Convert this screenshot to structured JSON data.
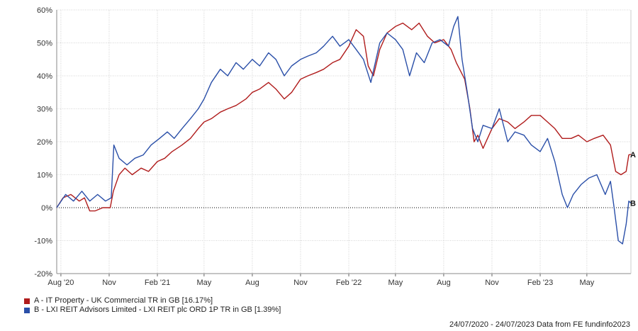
{
  "chart_data": {
    "type": "line",
    "y_unit": "%",
    "ylim": [
      -20,
      60
    ],
    "y_ticks": [
      "60%",
      "50%",
      "40%",
      "30%",
      "20%",
      "10%",
      "0%",
      "-10%",
      "-20%"
    ],
    "x_tick_labels": [
      "Aug '20",
      "Nov",
      "Feb '21",
      "May",
      "Aug",
      "Nov",
      "Feb '22",
      "May",
      "Aug",
      "Nov",
      "Feb '23",
      "May"
    ],
    "x_range": [
      "2020-07-24",
      "2023-07-24"
    ],
    "grid": true,
    "zero_line": "dotted",
    "series": [
      {
        "name": "A - IT Property - UK Commercial TR in GB [16.17%]",
        "end_label": "A",
        "color": "#b01c1c",
        "points": [
          [
            "2020-07-24",
            0
          ],
          [
            "2020-08-05",
            3
          ],
          [
            "2020-08-20",
            4
          ],
          [
            "2020-09-05",
            2
          ],
          [
            "2020-09-15",
            3
          ],
          [
            "2020-09-25",
            -1
          ],
          [
            "2020-10-05",
            -1
          ],
          [
            "2020-10-20",
            0
          ],
          [
            "2020-11-03",
            0
          ],
          [
            "2020-11-09",
            5
          ],
          [
            "2020-11-20",
            10
          ],
          [
            "2020-12-01",
            12
          ],
          [
            "2020-12-15",
            10
          ],
          [
            "2021-01-01",
            12
          ],
          [
            "2021-01-15",
            11
          ],
          [
            "2021-02-01",
            14
          ],
          [
            "2021-02-15",
            15
          ],
          [
            "2021-03-01",
            17
          ],
          [
            "2021-03-20",
            19
          ],
          [
            "2021-04-05",
            21
          ],
          [
            "2021-04-20",
            24
          ],
          [
            "2021-05-01",
            26
          ],
          [
            "2021-05-15",
            27
          ],
          [
            "2021-06-01",
            29
          ],
          [
            "2021-06-15",
            30
          ],
          [
            "2021-07-01",
            31
          ],
          [
            "2021-07-20",
            33
          ],
          [
            "2021-08-01",
            35
          ],
          [
            "2021-08-15",
            36
          ],
          [
            "2021-09-01",
            38
          ],
          [
            "2021-09-15",
            36
          ],
          [
            "2021-10-01",
            33
          ],
          [
            "2021-10-15",
            35
          ],
          [
            "2021-11-01",
            39
          ],
          [
            "2021-11-15",
            40
          ],
          [
            "2021-12-01",
            41
          ],
          [
            "2021-12-15",
            42
          ],
          [
            "2022-01-01",
            44
          ],
          [
            "2022-01-15",
            45
          ],
          [
            "2022-02-01",
            49
          ],
          [
            "2022-02-15",
            54
          ],
          [
            "2022-03-01",
            52
          ],
          [
            "2022-03-10",
            43
          ],
          [
            "2022-03-20",
            40
          ],
          [
            "2022-04-01",
            48
          ],
          [
            "2022-04-15",
            53
          ],
          [
            "2022-05-01",
            55
          ],
          [
            "2022-05-15",
            56
          ],
          [
            "2022-06-01",
            54
          ],
          [
            "2022-06-15",
            56
          ],
          [
            "2022-07-01",
            52
          ],
          [
            "2022-07-15",
            50
          ],
          [
            "2022-08-01",
            51
          ],
          [
            "2022-08-15",
            48
          ],
          [
            "2022-08-25",
            44
          ],
          [
            "2022-09-10",
            39
          ],
          [
            "2022-09-20",
            30
          ],
          [
            "2022-09-28",
            20
          ],
          [
            "2022-10-05",
            22
          ],
          [
            "2022-10-15",
            18
          ],
          [
            "2022-11-01",
            24
          ],
          [
            "2022-11-15",
            27
          ],
          [
            "2022-12-01",
            26
          ],
          [
            "2022-12-15",
            24
          ],
          [
            "2023-01-01",
            26
          ],
          [
            "2023-01-15",
            28
          ],
          [
            "2023-02-01",
            28
          ],
          [
            "2023-02-15",
            26
          ],
          [
            "2023-03-01",
            24
          ],
          [
            "2023-03-15",
            21
          ],
          [
            "2023-04-01",
            21
          ],
          [
            "2023-04-15",
            22
          ],
          [
            "2023-05-01",
            20
          ],
          [
            "2023-05-15",
            21
          ],
          [
            "2023-06-01",
            22
          ],
          [
            "2023-06-15",
            19
          ],
          [
            "2023-06-25",
            11
          ],
          [
            "2023-07-05",
            10
          ],
          [
            "2023-07-15",
            11
          ],
          [
            "2023-07-20",
            16
          ],
          [
            "2023-07-24",
            16.17
          ]
        ]
      },
      {
        "name": "B - LXI REIT Advisors Limited - LXI REIT plc ORD 1P TR in GB [1.39%]",
        "end_label": "B",
        "color": "#2a4fa8",
        "points": [
          [
            "2020-07-24",
            0
          ],
          [
            "2020-08-10",
            4
          ],
          [
            "2020-08-25",
            2
          ],
          [
            "2020-09-10",
            5
          ],
          [
            "2020-09-25",
            2
          ],
          [
            "2020-10-10",
            4
          ],
          [
            "2020-10-25",
            2
          ],
          [
            "2020-11-05",
            3
          ],
          [
            "2020-11-10",
            19
          ],
          [
            "2020-11-20",
            15
          ],
          [
            "2020-12-05",
            13
          ],
          [
            "2020-12-20",
            15
          ],
          [
            "2021-01-05",
            16
          ],
          [
            "2021-01-20",
            19
          ],
          [
            "2021-02-05",
            21
          ],
          [
            "2021-02-20",
            23
          ],
          [
            "2021-03-05",
            21
          ],
          [
            "2021-03-20",
            24
          ],
          [
            "2021-04-05",
            27
          ],
          [
            "2021-04-20",
            30
          ],
          [
            "2021-05-01",
            33
          ],
          [
            "2021-05-15",
            38
          ],
          [
            "2021-06-01",
            42
          ],
          [
            "2021-06-15",
            40
          ],
          [
            "2021-07-01",
            44
          ],
          [
            "2021-07-15",
            42
          ],
          [
            "2021-08-01",
            45
          ],
          [
            "2021-08-15",
            43
          ],
          [
            "2021-09-01",
            47
          ],
          [
            "2021-09-15",
            45
          ],
          [
            "2021-10-01",
            40
          ],
          [
            "2021-10-15",
            43
          ],
          [
            "2021-11-01",
            45
          ],
          [
            "2021-11-15",
            46
          ],
          [
            "2021-12-01",
            47
          ],
          [
            "2021-12-15",
            49
          ],
          [
            "2022-01-01",
            52
          ],
          [
            "2022-01-15",
            49
          ],
          [
            "2022-02-01",
            51
          ],
          [
            "2022-02-15",
            48
          ],
          [
            "2022-03-01",
            45
          ],
          [
            "2022-03-15",
            38
          ],
          [
            "2022-04-01",
            50
          ],
          [
            "2022-04-15",
            53
          ],
          [
            "2022-05-01",
            51
          ],
          [
            "2022-05-15",
            48
          ],
          [
            "2022-05-28",
            40
          ],
          [
            "2022-06-10",
            47
          ],
          [
            "2022-06-25",
            44
          ],
          [
            "2022-07-10",
            50
          ],
          [
            "2022-07-25",
            51
          ],
          [
            "2022-08-10",
            49
          ],
          [
            "2022-08-20",
            55
          ],
          [
            "2022-08-28",
            58
          ],
          [
            "2022-09-05",
            45
          ],
          [
            "2022-09-15",
            35
          ],
          [
            "2022-09-25",
            24
          ],
          [
            "2022-10-05",
            20
          ],
          [
            "2022-10-15",
            25
          ],
          [
            "2022-11-01",
            24
          ],
          [
            "2022-11-15",
            30
          ],
          [
            "2022-12-01",
            20
          ],
          [
            "2022-12-15",
            23
          ],
          [
            "2023-01-01",
            22
          ],
          [
            "2023-01-15",
            19
          ],
          [
            "2023-02-01",
            17
          ],
          [
            "2023-02-15",
            21
          ],
          [
            "2023-03-01",
            14
          ],
          [
            "2023-03-15",
            4
          ],
          [
            "2023-03-25",
            0
          ],
          [
            "2023-04-05",
            4
          ],
          [
            "2023-04-20",
            7
          ],
          [
            "2023-05-05",
            9
          ],
          [
            "2023-05-20",
            10
          ],
          [
            "2023-06-05",
            4
          ],
          [
            "2023-06-15",
            8
          ],
          [
            "2023-06-22",
            0
          ],
          [
            "2023-06-30",
            -10
          ],
          [
            "2023-07-08",
            -11
          ],
          [
            "2023-07-15",
            -5
          ],
          [
            "2023-07-20",
            2
          ],
          [
            "2023-07-24",
            1.39
          ]
        ]
      }
    ]
  },
  "footer": {
    "text": "24/07/2020 - 24/07/2023 Data from FE fundinfo2023"
  }
}
